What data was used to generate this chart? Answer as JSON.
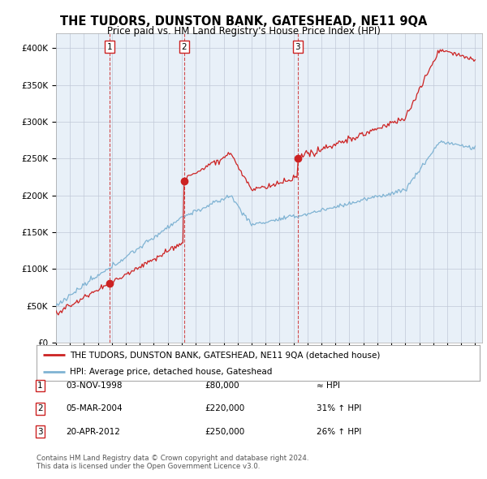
{
  "title": "THE TUDORS, DUNSTON BANK, GATESHEAD, NE11 9QA",
  "subtitle": "Price paid vs. HM Land Registry's House Price Index (HPI)",
  "ylim": [
    0,
    420000
  ],
  "yticks": [
    0,
    50000,
    100000,
    150000,
    200000,
    250000,
    300000,
    350000,
    400000
  ],
  "ytick_labels": [
    "£0",
    "£50K",
    "£100K",
    "£150K",
    "£200K",
    "£250K",
    "£300K",
    "£350K",
    "£400K"
  ],
  "xlim_start": 1995.0,
  "xlim_end": 2025.5,
  "sales": [
    {
      "date_num": 1998.84,
      "price": 80000,
      "label": "1"
    },
    {
      "date_num": 2004.17,
      "price": 220000,
      "label": "2"
    },
    {
      "date_num": 2012.3,
      "price": 250000,
      "label": "3"
    }
  ],
  "legend_entries": [
    "THE TUDORS, DUNSTON BANK, GATESHEAD, NE11 9QA (detached house)",
    "HPI: Average price, detached house, Gateshead"
  ],
  "table_data": [
    [
      "1",
      "03-NOV-1998",
      "£80,000",
      "≈ HPI"
    ],
    [
      "2",
      "05-MAR-2004",
      "£220,000",
      "31% ↑ HPI"
    ],
    [
      "3",
      "20-APR-2012",
      "£250,000",
      "26% ↑ HPI"
    ]
  ],
  "footer": "Contains HM Land Registry data © Crown copyright and database right 2024.\nThis data is licensed under the Open Government Licence v3.0.",
  "hpi_color": "#7fb3d3",
  "sales_color": "#cc2222",
  "bg_chart": "#e8f0f8",
  "background_color": "#ffffff",
  "grid_color": "#c0c8d8"
}
